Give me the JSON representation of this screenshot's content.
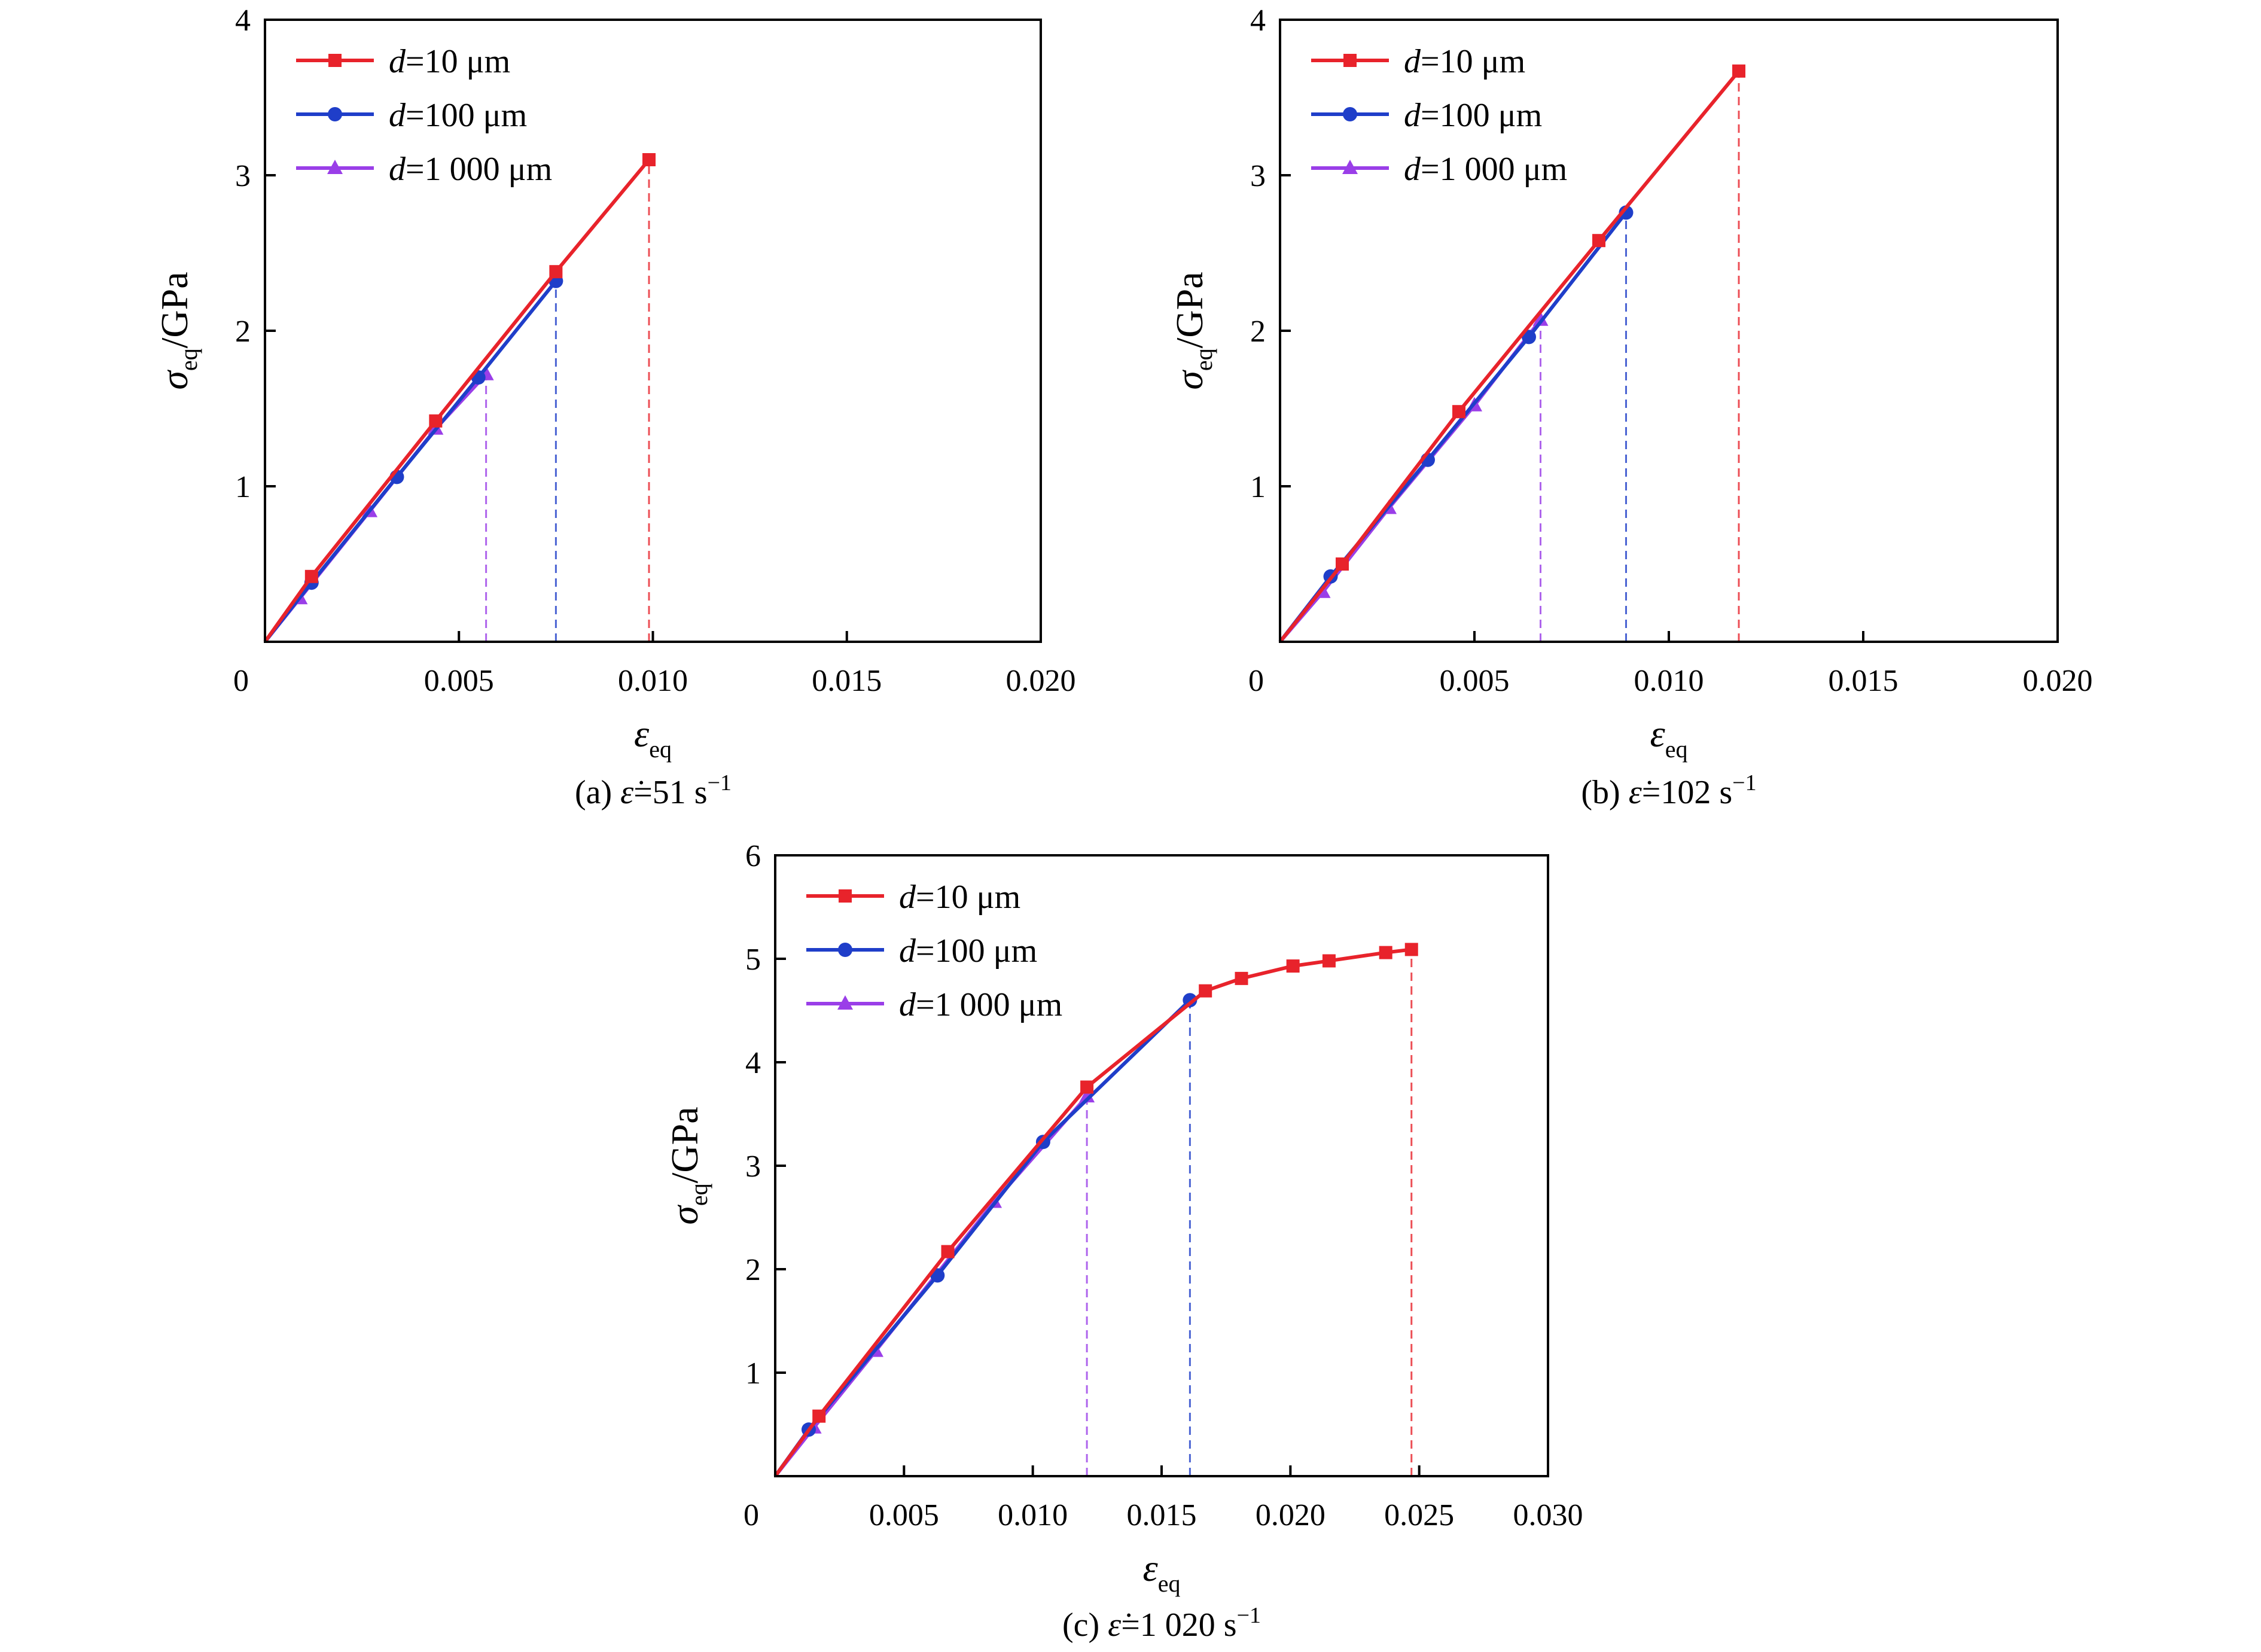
{
  "chart_data": [
    {
      "type": "line",
      "caption": {
        "prefix": "(a) ",
        "symbol": "ε̇",
        "eq": "=51 s",
        "sup": "−1"
      },
      "xlabel": {
        "symbol": "ε",
        "sub": "eq"
      },
      "ylabel": {
        "symbol": "σ",
        "sub": "eq",
        "unit": "/GPa"
      },
      "xlim": [
        0,
        0.02
      ],
      "ylim": [
        0,
        4
      ],
      "xticks": [
        0,
        0.005,
        0.01,
        0.015,
        0.02
      ],
      "xtick_labels": [
        "0",
        "0.005",
        "0.010",
        "0.015",
        "0.020"
      ],
      "yticks": [
        1,
        2,
        3,
        4
      ],
      "ytick_labels": [
        "1",
        "2",
        "3",
        "4"
      ],
      "legend_position": "top-left",
      "series": [
        {
          "name": "d=10 μm",
          "label_italic": "d",
          "label_rest": "=10 μm",
          "color": "#e8232b",
          "marker": "square",
          "x": [
            0,
            0.0012,
            0.0044,
            0.0075,
            0.0099
          ],
          "y": [
            0,
            0.42,
            1.42,
            2.38,
            3.1
          ],
          "cutoff": 0.0099
        },
        {
          "name": "d=100 μm",
          "label_italic": "d",
          "label_rest": "=100 μm",
          "color": "#1f3ec9",
          "marker": "circle",
          "x": [
            0,
            0.0012,
            0.0034,
            0.0055,
            0.0075
          ],
          "y": [
            0,
            0.38,
            1.06,
            1.7,
            2.32
          ],
          "cutoff": 0.0075
        },
        {
          "name": "d=1 000 μm",
          "label_italic": "d",
          "label_rest": "=1 000 μm",
          "color": "#9a3ee8",
          "marker": "triangle",
          "x": [
            0,
            0.0009,
            0.0027,
            0.0044,
            0.0057
          ],
          "y": [
            0,
            0.28,
            0.84,
            1.37,
            1.72
          ],
          "cutoff": 0.0057
        }
      ]
    },
    {
      "type": "line",
      "caption": {
        "prefix": "(b) ",
        "symbol": "ε̇",
        "eq": "=102 s",
        "sup": "−1"
      },
      "xlabel": {
        "symbol": "ε",
        "sub": "eq"
      },
      "ylabel": {
        "symbol": "σ",
        "sub": "eq",
        "unit": "/GPa"
      },
      "xlim": [
        0,
        0.02
      ],
      "ylim": [
        0,
        4
      ],
      "xticks": [
        0,
        0.005,
        0.01,
        0.015,
        0.02
      ],
      "xtick_labels": [
        "0",
        "0.005",
        "0.010",
        "0.015",
        "0.020"
      ],
      "yticks": [
        1,
        2,
        3,
        4
      ],
      "ytick_labels": [
        "1",
        "2",
        "3",
        "4"
      ],
      "legend_position": "top-left",
      "series": [
        {
          "name": "d=10 μm",
          "label_italic": "d",
          "label_rest": "=10 μm",
          "color": "#e8232b",
          "marker": "square",
          "x": [
            0,
            0.0016,
            0.0046,
            0.0082,
            0.0118
          ],
          "y": [
            0,
            0.5,
            1.48,
            2.58,
            3.67
          ],
          "cutoff": 0.0118
        },
        {
          "name": "d=100 μm",
          "label_italic": "d",
          "label_rest": "=100 μm",
          "color": "#1f3ec9",
          "marker": "circle",
          "x": [
            0,
            0.0013,
            0.0038,
            0.0064,
            0.0089
          ],
          "y": [
            0,
            0.42,
            1.17,
            1.96,
            2.76
          ],
          "cutoff": 0.0089
        },
        {
          "name": "d=1 000 μm",
          "label_italic": "d",
          "label_rest": "=1 000 μm",
          "color": "#9a3ee8",
          "marker": "triangle",
          "x": [
            0,
            0.0011,
            0.0028,
            0.005,
            0.0067
          ],
          "y": [
            0,
            0.32,
            0.86,
            1.52,
            2.07
          ],
          "cutoff": 0.0067
        }
      ]
    },
    {
      "type": "line",
      "caption": {
        "prefix": "(c) ",
        "symbol": "ε̇",
        "eq": "=1 020 s",
        "sup": "−1"
      },
      "xlabel": {
        "symbol": "ε",
        "sub": "eq"
      },
      "ylabel": {
        "symbol": "σ",
        "sub": "eq",
        "unit": "/GPa"
      },
      "xlim": [
        0,
        0.03
      ],
      "ylim": [
        0,
        6
      ],
      "xticks": [
        0,
        0.005,
        0.01,
        0.015,
        0.02,
        0.025,
        0.03
      ],
      "xtick_labels": [
        "0",
        "0.005",
        "0.010",
        "0.015",
        "0.020",
        "0.025",
        "0.030"
      ],
      "yticks": [
        1,
        2,
        3,
        4,
        5,
        6
      ],
      "ytick_labels": [
        "1",
        "2",
        "3",
        "4",
        "5",
        "6"
      ],
      "legend_position": "top-left",
      "series": [
        {
          "name": "d=10 μm",
          "label_italic": "d",
          "label_rest": "=10 μm",
          "color": "#e8232b",
          "marker": "square",
          "x": [
            0,
            0.0017,
            0.0067,
            0.0121,
            0.0167,
            0.0181,
            0.0201,
            0.0215,
            0.0237,
            0.0247
          ],
          "y": [
            0,
            0.58,
            2.17,
            3.76,
            4.69,
            4.81,
            4.93,
            4.98,
            5.06,
            5.09
          ],
          "cutoff": 0.0247
        },
        {
          "name": "d=100 μm",
          "label_italic": "d",
          "label_rest": "=100 μm",
          "color": "#1f3ec9",
          "marker": "circle",
          "x": [
            0,
            0.0013,
            0.0063,
            0.0104,
            0.0161
          ],
          "y": [
            0,
            0.45,
            1.94,
            3.23,
            4.6
          ],
          "cutoff": 0.0161
        },
        {
          "name": "d=1 000 μm",
          "label_italic": "d",
          "label_rest": "=1 000 μm",
          "color": "#9a3ee8",
          "marker": "triangle",
          "x": [
            0,
            0.0015,
            0.0039,
            0.0085,
            0.0121
          ],
          "y": [
            0,
            0.47,
            1.21,
            2.65,
            3.67
          ],
          "cutoff": 0.0121
        }
      ]
    }
  ]
}
